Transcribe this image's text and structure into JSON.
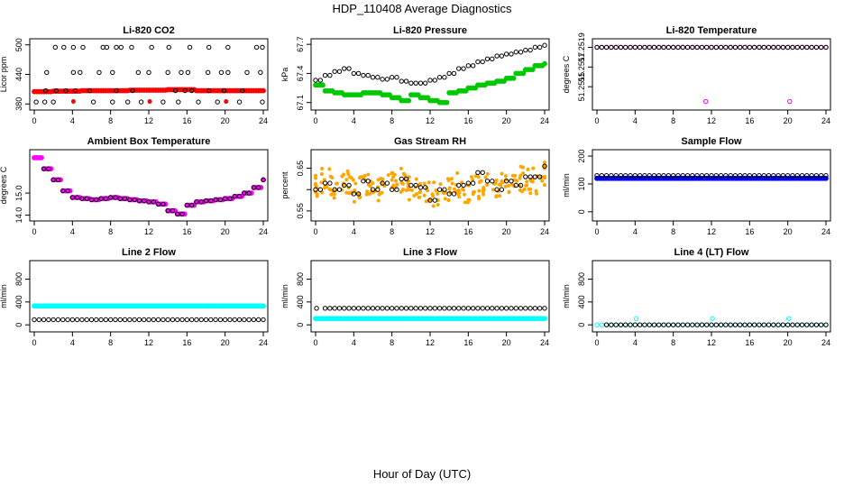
{
  "page": {
    "title": "HDP_110408  Average Diagnostics",
    "x_caption": "Hour of Day (UTC)"
  },
  "chart_data": [
    {
      "type": "scatter",
      "title": "Li-820 CO2",
      "ylabel": "Licor ppm",
      "xlim": [
        0,
        24
      ],
      "ylim": [
        375,
        505
      ],
      "xticks": [
        0,
        4,
        8,
        12,
        16,
        20,
        24
      ],
      "yticks": [
        380,
        440,
        500
      ],
      "series": [
        {
          "color": "#ff0000",
          "marker": "circle-filled",
          "y": [
            405,
            405,
            406,
            406,
            406,
            407,
            407,
            407,
            407,
            407,
            408,
            408,
            408,
            408,
            409,
            409,
            409,
            407,
            407,
            407,
            407,
            407,
            407,
            407,
            407
          ],
          "extra": [
            [
              4.1,
              385
            ],
            [
              12.1,
              385
            ],
            [
              20.1,
              385
            ]
          ]
        },
        {
          "color": "#000000",
          "marker": "circle",
          "extra": [
            [
              0.2,
              384
            ],
            [
              1.1,
              384
            ],
            [
              2.0,
              384
            ],
            [
              2.2,
              495
            ],
            [
              3.1,
              495
            ],
            [
              4.1,
              495
            ],
            [
              5.1,
              495
            ],
            [
              6.2,
              384
            ],
            [
              7.2,
              495
            ],
            [
              7.6,
              495
            ],
            [
              8.2,
              384
            ],
            [
              8.6,
              495
            ],
            [
              9.1,
              495
            ],
            [
              9.8,
              384
            ],
            [
              10.2,
              495
            ],
            [
              11.2,
              384
            ],
            [
              12.3,
              495
            ],
            [
              13.5,
              384
            ],
            [
              14.1,
              495
            ],
            [
              15.1,
              384
            ],
            [
              16.3,
              495
            ],
            [
              17.2,
              384
            ],
            [
              18.3,
              495
            ],
            [
              19.2,
              384
            ],
            [
              20.3,
              495
            ],
            [
              21.5,
              384
            ],
            [
              23.3,
              495
            ],
            [
              23.9,
              495
            ],
            [
              23.9,
              384
            ],
            [
              1.3,
              444
            ],
            [
              4.1,
              444
            ],
            [
              4.8,
              444
            ],
            [
              6.8,
              444
            ],
            [
              8.2,
              444
            ],
            [
              10.9,
              444
            ],
            [
              12.0,
              444
            ],
            [
              14.0,
              444
            ],
            [
              15.4,
              444
            ],
            [
              16.1,
              444
            ],
            [
              18.2,
              444
            ],
            [
              19.6,
              444
            ],
            [
              20.3,
              444
            ],
            [
              22.3,
              444
            ],
            [
              23.7,
              444
            ],
            [
              1.2,
              407
            ],
            [
              2.3,
              407
            ],
            [
              3.3,
              407
            ],
            [
              4.3,
              407
            ],
            [
              5.8,
              407
            ],
            [
              8.6,
              407
            ],
            [
              10.3,
              407
            ],
            [
              14.8,
              407
            ],
            [
              15.8,
              407
            ],
            [
              16.5,
              407
            ],
            [
              18.3,
              407
            ],
            [
              19.9,
              407
            ],
            [
              21.8,
              407
            ]
          ]
        }
      ]
    },
    {
      "type": "scatter",
      "title": "Li-820 Pressure",
      "ylabel": "kPa",
      "xlim": [
        0,
        24
      ],
      "ylim": [
        67.06,
        67.72
      ],
      "xticks": [
        0,
        4,
        8,
        12,
        16,
        20,
        24
      ],
      "yticks": [
        67.1,
        67.4,
        67.7
      ],
      "series": [
        {
          "color": "#00c800",
          "marker": "circle-filled",
          "y": [
            67.28,
            67.22,
            67.2,
            67.18,
            67.18,
            67.2,
            67.2,
            67.18,
            67.15,
            67.12,
            67.18,
            67.15,
            67.12,
            67.1,
            67.2,
            67.22,
            67.25,
            67.28,
            67.3,
            67.32,
            67.35,
            67.4,
            67.44,
            67.48,
            67.5
          ]
        },
        {
          "color": "#000000",
          "marker": "circle",
          "y": [
            67.33,
            67.38,
            67.42,
            67.45,
            67.4,
            67.38,
            67.36,
            67.34,
            67.36,
            67.32,
            67.3,
            67.3,
            67.33,
            67.36,
            67.4,
            67.45,
            67.48,
            67.52,
            67.55,
            67.58,
            67.6,
            67.62,
            67.64,
            67.67,
            67.69
          ]
        }
      ]
    },
    {
      "type": "scatter",
      "title": "Li-820 Temperature",
      "ylabel": "degrees C",
      "xlim": [
        0,
        24
      ],
      "ylim": [
        51.2513,
        51.25195
      ],
      "xticks": [
        0,
        4,
        8,
        12,
        16,
        20,
        24
      ],
      "yticks": [
        51.2515,
        51.2517,
        51.2519
      ],
      "ytick_labels": [
        "51.2515",
        "51.2517",
        "51.2519"
      ],
      "series": [
        {
          "color": "#ff00ff",
          "marker": "circle",
          "y": [
            51.2519,
            51.2519,
            51.2519,
            51.2519,
            51.2519,
            51.2519,
            51.2519,
            51.2519,
            51.2519,
            51.2519,
            51.2519,
            51.2519,
            51.2519,
            51.2519,
            51.2519,
            51.2519,
            51.2519,
            51.2519,
            51.2519,
            51.2519,
            51.2519,
            51.2519,
            51.2519,
            51.2519,
            51.2519
          ],
          "extra": [
            [
              11.4,
              51.25135
            ],
            [
              20.2,
              51.25135
            ]
          ]
        },
        {
          "color": "#000000",
          "marker": "circle",
          "y": [
            51.2519,
            51.2519,
            51.2519,
            51.2519,
            51.2519,
            51.2519,
            51.2519,
            51.2519,
            51.2519,
            51.2519,
            51.2519,
            51.2519,
            51.2519,
            51.2519,
            51.2519,
            51.2519,
            51.2519,
            51.2519,
            51.2519,
            51.2519,
            51.2519,
            51.2519,
            51.2519,
            51.2519,
            51.2519
          ]
        }
      ]
    },
    {
      "type": "scatter",
      "title": "Ambient Box Temperature",
      "ylabel": "degrees C",
      "xlim": [
        0,
        24
      ],
      "ylim": [
        13.9,
        16.8
      ],
      "xticks": [
        0,
        4,
        8,
        12,
        16,
        20,
        24
      ],
      "yticks": [
        14.0,
        15.0
      ],
      "ytick_labels": [
        "14.0",
        "15.0"
      ],
      "series": [
        {
          "color": "#ff00ff",
          "marker": "circle-filled",
          "y": [
            16.6,
            16.1,
            15.6,
            15.1,
            14.8,
            14.75,
            14.7,
            14.75,
            14.8,
            14.75,
            14.7,
            14.65,
            14.6,
            14.5,
            14.2,
            14.05,
            14.45,
            14.6,
            14.65,
            14.7,
            14.75,
            14.85,
            15.0,
            15.25,
            15.6
          ]
        },
        {
          "color": "#000000",
          "marker": "circle",
          "y": [
            null,
            16.1,
            15.6,
            15.1,
            14.8,
            14.75,
            14.7,
            14.75,
            14.8,
            14.75,
            14.7,
            14.65,
            14.6,
            14.5,
            14.2,
            14.05,
            14.45,
            14.6,
            14.65,
            14.7,
            14.75,
            14.85,
            15.0,
            15.25,
            15.6
          ]
        }
      ]
    },
    {
      "type": "scatter",
      "title": "Gas Stream RH",
      "ylabel": "percent",
      "xlim": [
        0,
        24
      ],
      "ylim": [
        0.535,
        0.685
      ],
      "xticks": [
        0,
        4,
        8,
        12,
        16,
        20,
        24
      ],
      "yticks": [
        0.55,
        0.6,
        0.65
      ],
      "ytick_labels": [
        "0.55",
        "",
        "0.65"
      ],
      "series": [
        {
          "color": "#ffa500",
          "marker": "circle-filled",
          "y": [
            0.61,
            0.62,
            0.605,
            0.615,
            0.6,
            0.61,
            0.62,
            0.6,
            0.61,
            0.62,
            0.605,
            0.61,
            0.59,
            0.585,
            0.6,
            0.61,
            0.6,
            0.605,
            0.61,
            0.6,
            0.62,
            0.615,
            0.625,
            0.62,
            0.64
          ],
          "spread": 0.03
        },
        {
          "color": "#000000",
          "marker": "circle",
          "y": [
            0.6,
            0.615,
            0.6,
            0.61,
            0.59,
            0.62,
            0.6,
            0.615,
            0.6,
            0.625,
            0.61,
            0.605,
            0.575,
            0.6,
            0.59,
            0.61,
            0.615,
            0.64,
            0.62,
            0.6,
            0.62,
            0.61,
            0.63,
            0.63,
            0.655
          ]
        }
      ]
    },
    {
      "type": "scatter",
      "title": "Sample Flow",
      "ylabel": "ml/min",
      "xlim": [
        0,
        24
      ],
      "ylim": [
        -20,
        210
      ],
      "xticks": [
        0,
        4,
        8,
        12,
        16,
        20,
        24
      ],
      "yticks": [
        0,
        100,
        200
      ],
      "series": [
        {
          "color": "#0000ff",
          "marker": "circle-filled",
          "y": [
            120,
            120,
            120,
            120,
            120,
            120,
            120,
            120,
            120,
            120,
            120,
            120,
            120,
            120,
            120,
            120,
            120,
            120,
            120,
            120,
            120,
            120,
            120,
            120,
            120
          ]
        },
        {
          "color": "#000000",
          "marker": "circle",
          "y": [
            130,
            130,
            130,
            130,
            130,
            130,
            130,
            130,
            130,
            130,
            130,
            130,
            130,
            130,
            130,
            130,
            130,
            130,
            130,
            130,
            130,
            130,
            130,
            130,
            130
          ]
        }
      ]
    },
    {
      "type": "scatter",
      "title": "Line 2 Flow",
      "ylabel": "ml/min",
      "xlim": [
        0,
        24
      ],
      "ylim": [
        -60,
        1060
      ],
      "xticks": [
        0,
        4,
        8,
        12,
        16,
        20,
        24
      ],
      "yticks": [
        0,
        400,
        800
      ],
      "series": [
        {
          "color": "#00ffff",
          "marker": "circle-filled",
          "y": [
            330,
            330,
            330,
            330,
            330,
            330,
            330,
            330,
            330,
            330,
            330,
            330,
            330,
            330,
            330,
            330,
            330,
            330,
            330,
            330,
            330,
            330,
            330,
            330,
            330
          ]
        },
        {
          "color": "#000000",
          "marker": "circle",
          "y": [
            90,
            90,
            90,
            90,
            90,
            90,
            90,
            90,
            90,
            90,
            90,
            90,
            90,
            90,
            90,
            90,
            90,
            90,
            90,
            90,
            90,
            90,
            90,
            90,
            90
          ]
        }
      ]
    },
    {
      "type": "scatter",
      "title": "Line 3 Flow",
      "ylabel": "ml/min",
      "xlim": [
        0,
        24
      ],
      "ylim": [
        -60,
        1060
      ],
      "xticks": [
        0,
        4,
        8,
        12,
        16,
        20,
        24
      ],
      "yticks": [
        0,
        400,
        800
      ],
      "series": [
        {
          "color": "#00ffff",
          "marker": "circle-filled",
          "y": [
            110,
            110,
            110,
            110,
            110,
            110,
            110,
            110,
            110,
            110,
            110,
            110,
            110,
            110,
            110,
            110,
            110,
            110,
            110,
            110,
            110,
            110,
            110,
            110,
            110
          ]
        },
        {
          "color": "#000000",
          "marker": "circle",
          "y": [
            null,
            290,
            290,
            290,
            290,
            290,
            290,
            290,
            290,
            290,
            290,
            290,
            290,
            290,
            290,
            290,
            290,
            290,
            290,
            290,
            290,
            290,
            290,
            290,
            290
          ],
          "extra": [
            [
              0.1,
              290
            ]
          ]
        }
      ]
    },
    {
      "type": "scatter",
      "title": "Line 4 (LT) Flow",
      "ylabel": "ml/min",
      "xlim": [
        0,
        24
      ],
      "ylim": [
        -60,
        1060
      ],
      "xticks": [
        0,
        4,
        8,
        12,
        16,
        20,
        24
      ],
      "yticks": [
        0,
        400,
        800
      ],
      "series": [
        {
          "color": "#00ffff",
          "marker": "circle",
          "y": [
            0,
            0,
            0,
            0,
            0,
            0,
            0,
            0,
            0,
            0,
            0,
            0,
            0,
            0,
            0,
            0,
            0,
            0,
            0,
            0,
            0,
            0,
            0,
            0,
            0
          ],
          "extra": [
            [
              4.1,
              110
            ],
            [
              12.1,
              110
            ],
            [
              20.1,
              110
            ]
          ]
        },
        {
          "color": "#000000",
          "marker": "circle",
          "y": [
            null,
            0,
            0,
            0,
            0,
            0,
            0,
            0,
            0,
            0,
            0,
            0,
            0,
            0,
            0,
            0,
            0,
            0,
            0,
            0,
            0,
            0,
            0,
            0,
            0
          ]
        }
      ]
    }
  ]
}
